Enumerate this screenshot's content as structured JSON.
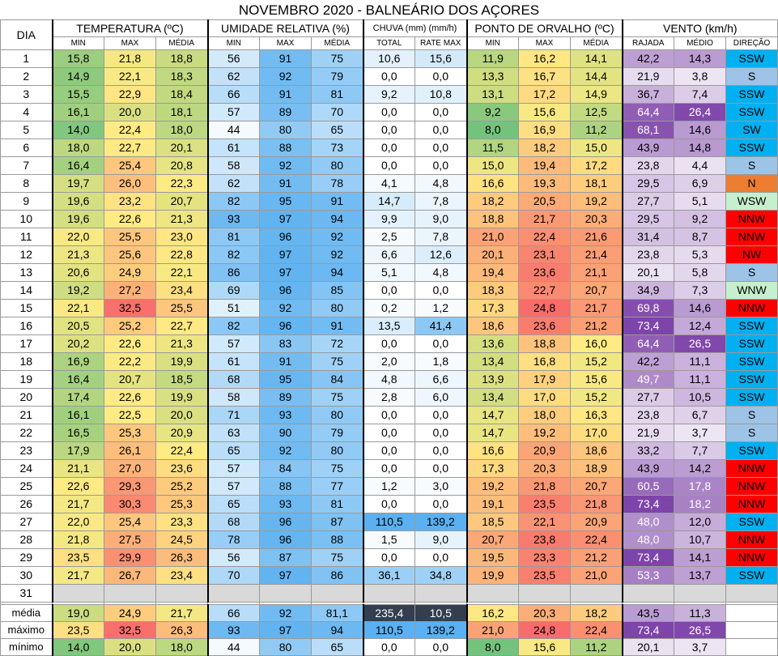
{
  "title": "NOVEMBRO 2020 - BALNEÁRIO DOS AÇORES",
  "header": {
    "dia": "DIA",
    "groups": {
      "temperatura": "TEMPERATURA (ºC)",
      "umidade": "UMIDADE RELATIVA (%)",
      "chuva": "CHUVA (mm) (mm/h)",
      "orvalho": "PONTO DE ORVALHO (ºC)",
      "vento": "VENTO (km/h)"
    },
    "sub": {
      "t_min": "MIN",
      "t_max": "MAX",
      "t_media": "MÉDIA",
      "u_min": "MIN",
      "u_max": "MAX",
      "u_media": "MÉDIA",
      "c_total": "TOTAL",
      "c_rate": "RATE MAX",
      "o_min": "MIN",
      "o_max": "MAX",
      "o_media": "MÉDIA",
      "v_rajada": "RAJADA",
      "v_medio": "MÉDIO",
      "v_direcao": "DIREÇÃO"
    }
  },
  "rows": [
    {
      "dia": "1",
      "tmin": "15,8",
      "tmax": "21,8",
      "tmed": "18,8",
      "umin": "56",
      "umax": "91",
      "umed": "75",
      "chuva": "10,6",
      "rate": "15,6",
      "omin": "11,9",
      "omax": "16,2",
      "omed": "14,1",
      "raj": "42,2",
      "vmed": "14,3",
      "dir": "SSW"
    },
    {
      "dia": "2",
      "tmin": "14,9",
      "tmax": "22,1",
      "tmed": "18,3",
      "umin": "62",
      "umax": "92",
      "umed": "79",
      "chuva": "0,0",
      "rate": "0,0",
      "omin": "13,3",
      "omax": "16,7",
      "omed": "14,4",
      "raj": "21,9",
      "vmed": "3,8",
      "dir": "S"
    },
    {
      "dia": "3",
      "tmin": "15,5",
      "tmax": "22,9",
      "tmed": "18,4",
      "umin": "66",
      "umax": "91",
      "umed": "81",
      "chuva": "9,2",
      "rate": "10,8",
      "omin": "13,1",
      "omax": "17,2",
      "omed": "14,9",
      "raj": "36,7",
      "vmed": "7,4",
      "dir": "SSW"
    },
    {
      "dia": "4",
      "tmin": "16,1",
      "tmax": "20,0",
      "tmed": "18,1",
      "umin": "57",
      "umax": "89",
      "umed": "70",
      "chuva": "0,0",
      "rate": "0,0",
      "omin": "9,2",
      "omax": "15,6",
      "omed": "12,5",
      "raj": "64,4",
      "vmed": "26,4",
      "dir": "SSW"
    },
    {
      "dia": "5",
      "tmin": "14,0",
      "tmax": "22,4",
      "tmed": "18,0",
      "umin": "44",
      "umax": "80",
      "umed": "65",
      "chuva": "0,0",
      "rate": "0,0",
      "omin": "8,0",
      "omax": "16,9",
      "omed": "11,2",
      "raj": "68,1",
      "vmed": "14,6",
      "dir": "SW"
    },
    {
      "dia": "6",
      "tmin": "18,0",
      "tmax": "22,7",
      "tmed": "20,1",
      "umin": "61",
      "umax": "88",
      "umed": "73",
      "chuva": "0,0",
      "rate": "0,0",
      "omin": "11,5",
      "omax": "18,2",
      "omed": "15,0",
      "raj": "43,9",
      "vmed": "14,8",
      "dir": "SSW"
    },
    {
      "dia": "7",
      "tmin": "16,4",
      "tmax": "25,4",
      "tmed": "20,8",
      "umin": "58",
      "umax": "92",
      "umed": "80",
      "chuva": "0,0",
      "rate": "0,0",
      "omin": "15,0",
      "omax": "19,4",
      "omed": "17,2",
      "raj": "23,8",
      "vmed": "4,4",
      "dir": "S"
    },
    {
      "dia": "8",
      "tmin": "19,7",
      "tmax": "26,0",
      "tmed": "22,3",
      "umin": "62",
      "umax": "91",
      "umed": "78",
      "chuva": "4,1",
      "rate": "4,8",
      "omin": "16,6",
      "omax": "19,3",
      "omed": "18,1",
      "raj": "29,5",
      "vmed": "6,9",
      "dir": "N"
    },
    {
      "dia": "9",
      "tmin": "19,6",
      "tmax": "23,2",
      "tmed": "20,7",
      "umin": "82",
      "umax": "95",
      "umed": "91",
      "chuva": "14,7",
      "rate": "7,8",
      "omin": "18,2",
      "omax": "20,5",
      "omed": "19,2",
      "raj": "27,7",
      "vmed": "5,1",
      "dir": "WSW"
    },
    {
      "dia": "10",
      "tmin": "19,6",
      "tmax": "22,6",
      "tmed": "21,3",
      "umin": "93",
      "umax": "97",
      "umed": "94",
      "chuva": "9,9",
      "rate": "9,0",
      "omin": "18,8",
      "omax": "21,7",
      "omed": "20,3",
      "raj": "29,5",
      "vmed": "9,2",
      "dir": "NNW"
    },
    {
      "dia": "11",
      "tmin": "22,0",
      "tmax": "25,5",
      "tmed": "23,0",
      "umin": "81",
      "umax": "96",
      "umed": "92",
      "chuva": "2,5",
      "rate": "7,8",
      "omin": "21,0",
      "omax": "22,4",
      "omed": "21,6",
      "raj": "31,4",
      "vmed": "8,7",
      "dir": "NNW"
    },
    {
      "dia": "12",
      "tmin": "21,3",
      "tmax": "25,6",
      "tmed": "22,8",
      "umin": "82",
      "umax": "97",
      "umed": "92",
      "chuva": "6,6",
      "rate": "12,6",
      "omin": "20,1",
      "omax": "23,1",
      "omed": "21,4",
      "raj": "23,8",
      "vmed": "5,3",
      "dir": "NW"
    },
    {
      "dia": "13",
      "tmin": "20,6",
      "tmax": "24,9",
      "tmed": "22,1",
      "umin": "86",
      "umax": "97",
      "umed": "94",
      "chuva": "5,1",
      "rate": "4,8",
      "omin": "19,4",
      "omax": "23,6",
      "omed": "21,1",
      "raj": "20,1",
      "vmed": "5,8",
      "dir": "S"
    },
    {
      "dia": "14",
      "tmin": "19,2",
      "tmax": "27,2",
      "tmed": "23,4",
      "umin": "69",
      "umax": "96",
      "umed": "85",
      "chuva": "0,0",
      "rate": "0,0",
      "omin": "18,3",
      "omax": "22,7",
      "omed": "20,7",
      "raj": "34,9",
      "vmed": "7,3",
      "dir": "WNW"
    },
    {
      "dia": "15",
      "tmin": "22,1",
      "tmax": "32,5",
      "tmed": "25,5",
      "umin": "51",
      "umax": "92",
      "umed": "80",
      "chuva": "0,2",
      "rate": "1,2",
      "omin": "17,3",
      "omax": "24,8",
      "omed": "21,7",
      "raj": "69,8",
      "vmed": "14,6",
      "dir": "NNW"
    },
    {
      "dia": "16",
      "tmin": "20,5",
      "tmax": "25,2",
      "tmed": "22,7",
      "umin": "82",
      "umax": "96",
      "umed": "91",
      "chuva": "13,5",
      "rate": "41,4",
      "omin": "18,6",
      "omax": "23,6",
      "omed": "21,2",
      "raj": "73,4",
      "vmed": "12,4",
      "dir": "SSW"
    },
    {
      "dia": "17",
      "tmin": "20,2",
      "tmax": "22,6",
      "tmed": "21,3",
      "umin": "57",
      "umax": "83",
      "umed": "72",
      "chuva": "0,0",
      "rate": "0,0",
      "omin": "13,6",
      "omax": "18,8",
      "omed": "16,0",
      "raj": "64,4",
      "vmed": "26,5",
      "dir": "SSW"
    },
    {
      "dia": "18",
      "tmin": "16,9",
      "tmax": "22,2",
      "tmed": "19,9",
      "umin": "61",
      "umax": "91",
      "umed": "75",
      "chuva": "2,0",
      "rate": "1,8",
      "omin": "13,4",
      "omax": "16,8",
      "omed": "15,2",
      "raj": "42,2",
      "vmed": "11,1",
      "dir": "SSW"
    },
    {
      "dia": "19",
      "tmin": "16,4",
      "tmax": "20,7",
      "tmed": "18,5",
      "umin": "68",
      "umax": "95",
      "umed": "84",
      "chuva": "4,8",
      "rate": "6,6",
      "omin": "13,9",
      "omax": "17,9",
      "omed": "15,6",
      "raj": "49,7",
      "vmed": "11,1",
      "dir": "SSW"
    },
    {
      "dia": "20",
      "tmin": "17,4",
      "tmax": "22,6",
      "tmed": "19,9",
      "umin": "58",
      "umax": "89",
      "umed": "75",
      "chuva": "2,8",
      "rate": "6,0",
      "omin": "13,4",
      "omax": "17,0",
      "omed": "15,2",
      "raj": "27,7",
      "vmed": "10,5",
      "dir": "SSW"
    },
    {
      "dia": "21",
      "tmin": "16,1",
      "tmax": "22,5",
      "tmed": "20,0",
      "umin": "71",
      "umax": "93",
      "umed": "80",
      "chuva": "0,0",
      "rate": "0,0",
      "omin": "14,7",
      "omax": "18,0",
      "omed": "16,3",
      "raj": "23,8",
      "vmed": "6,7",
      "dir": "S"
    },
    {
      "dia": "22",
      "tmin": "16,5",
      "tmax": "25,3",
      "tmed": "20,9",
      "umin": "63",
      "umax": "90",
      "umed": "79",
      "chuva": "0,0",
      "rate": "0,0",
      "omin": "14,7",
      "omax": "19,2",
      "omed": "17,0",
      "raj": "21,9",
      "vmed": "3,7",
      "dir": "S"
    },
    {
      "dia": "23",
      "tmin": "17,9",
      "tmax": "26,1",
      "tmed": "22,4",
      "umin": "65",
      "umax": "92",
      "umed": "80",
      "chuva": "0,0",
      "rate": "0,0",
      "omin": "16,6",
      "omax": "20,9",
      "omed": "18,6",
      "raj": "33,2",
      "vmed": "7,7",
      "dir": "SSW"
    },
    {
      "dia": "24",
      "tmin": "21,1",
      "tmax": "27,0",
      "tmed": "23,6",
      "umin": "57",
      "umax": "84",
      "umed": "75",
      "chuva": "0,0",
      "rate": "0,0",
      "omin": "17,3",
      "omax": "20,3",
      "omed": "18,9",
      "raj": "43,9",
      "vmed": "14,2",
      "dir": "NNW"
    },
    {
      "dia": "25",
      "tmin": "22,6",
      "tmax": "29,3",
      "tmed": "25,2",
      "umin": "57",
      "umax": "88",
      "umed": "77",
      "chuva": "1,2",
      "rate": "3,0",
      "omin": "19,2",
      "omax": "21,8",
      "omed": "20,7",
      "raj": "60,5",
      "vmed": "17,8",
      "dir": "NNW"
    },
    {
      "dia": "26",
      "tmin": "21,7",
      "tmax": "30,3",
      "tmed": "25,3",
      "umin": "65",
      "umax": "93",
      "umed": "81",
      "chuva": "0,0",
      "rate": "0,0",
      "omin": "19,1",
      "omax": "23,5",
      "omed": "21,8",
      "raj": "73,4",
      "vmed": "18,2",
      "dir": "NNW"
    },
    {
      "dia": "27",
      "tmin": "22,0",
      "tmax": "25,4",
      "tmed": "23,3",
      "umin": "68",
      "umax": "96",
      "umed": "87",
      "chuva": "110,5",
      "rate": "139,2",
      "omin": "18,5",
      "omax": "22,1",
      "omed": "20,9",
      "raj": "48,0",
      "vmed": "12,0",
      "dir": "SSW"
    },
    {
      "dia": "28",
      "tmin": "21,8",
      "tmax": "27,5",
      "tmed": "24,5",
      "umin": "78",
      "umax": "96",
      "umed": "88",
      "chuva": "1,5",
      "rate": "9,0",
      "omin": "20,7",
      "omax": "23,8",
      "omed": "22,4",
      "raj": "48,0",
      "vmed": "10,7",
      "dir": "NNW"
    },
    {
      "dia": "29",
      "tmin": "23,5",
      "tmax": "29,9",
      "tmed": "26,3",
      "umin": "56",
      "umax": "87",
      "umed": "75",
      "chuva": "0,0",
      "rate": "0,0",
      "omin": "19,5",
      "omax": "23,3",
      "omed": "21,2",
      "raj": "73,4",
      "vmed": "14,1",
      "dir": "NNW"
    },
    {
      "dia": "30",
      "tmin": "21,7",
      "tmax": "26,7",
      "tmed": "23,4",
      "umin": "70",
      "umax": "97",
      "umed": "86",
      "chuva": "36,1",
      "rate": "34,8",
      "omin": "19,9",
      "omax": "23,5",
      "omed": "21,0",
      "raj": "53,3",
      "vmed": "13,7",
      "dir": "SSW"
    },
    {
      "dia": "31",
      "tmin": "",
      "tmax": "",
      "tmed": "",
      "umin": "",
      "umax": "",
      "umed": "",
      "chuva": "",
      "rate": "",
      "omin": "",
      "omax": "",
      "omed": "",
      "raj": "",
      "vmed": "",
      "dir": ""
    }
  ],
  "summary": [
    {
      "label": "média",
      "tmin": "19,0",
      "tmax": "24,9",
      "tmed": "21,7",
      "umin": "66",
      "umax": "92",
      "umed": "81,1",
      "chuva": "235,4",
      "rate": "10,5",
      "omin": "16,2",
      "omax": "20,3",
      "omed": "18,2",
      "raj": "43,5",
      "vmed": "11,3",
      "dir": ""
    },
    {
      "label": "máximo",
      "tmin": "23,5",
      "tmax": "32,5",
      "tmed": "26,3",
      "umin": "93",
      "umax": "97",
      "umed": "94",
      "chuva": "110,5",
      "rate": "139,2",
      "omin": "21,0",
      "omax": "24,8",
      "omed": "22,4",
      "raj": "73,4",
      "vmed": "26,5",
      "dir": ""
    },
    {
      "label": "mínimo",
      "tmin": "14,0",
      "tmax": "20,0",
      "tmed": "18,0",
      "umin": "44",
      "umax": "80",
      "umed": "65",
      "chuva": "0,0",
      "rate": "0,0",
      "omin": "8,0",
      "omax": "15,6",
      "omed": "11,2",
      "raj": "20,1",
      "vmed": "3,7",
      "dir": ""
    }
  ],
  "colors": {
    "temp_scale": [
      "#63be7b",
      "#ffeb84",
      "#f8696b"
    ],
    "hum_scale": [
      "#ffffff",
      "#5ab0f0"
    ],
    "rain_scale": [
      "#ffffff",
      "#5ab0f0"
    ],
    "dew_scale": [
      "#63be7b",
      "#ffeb84",
      "#f8696b"
    ],
    "wind_scale": [
      "#ffffff",
      "#7030a0"
    ],
    "dir_colors": {
      "SSW": "#00b0f0",
      "SW": "#00b0f0",
      "S": "#9dc3e6",
      "N": "#ed7d31",
      "WSW": "#c6efce",
      "WNW": "#c6efce",
      "NNW": "#ff0000",
      "NW": "#ff0000"
    },
    "dark_summary": "#333f4f"
  }
}
